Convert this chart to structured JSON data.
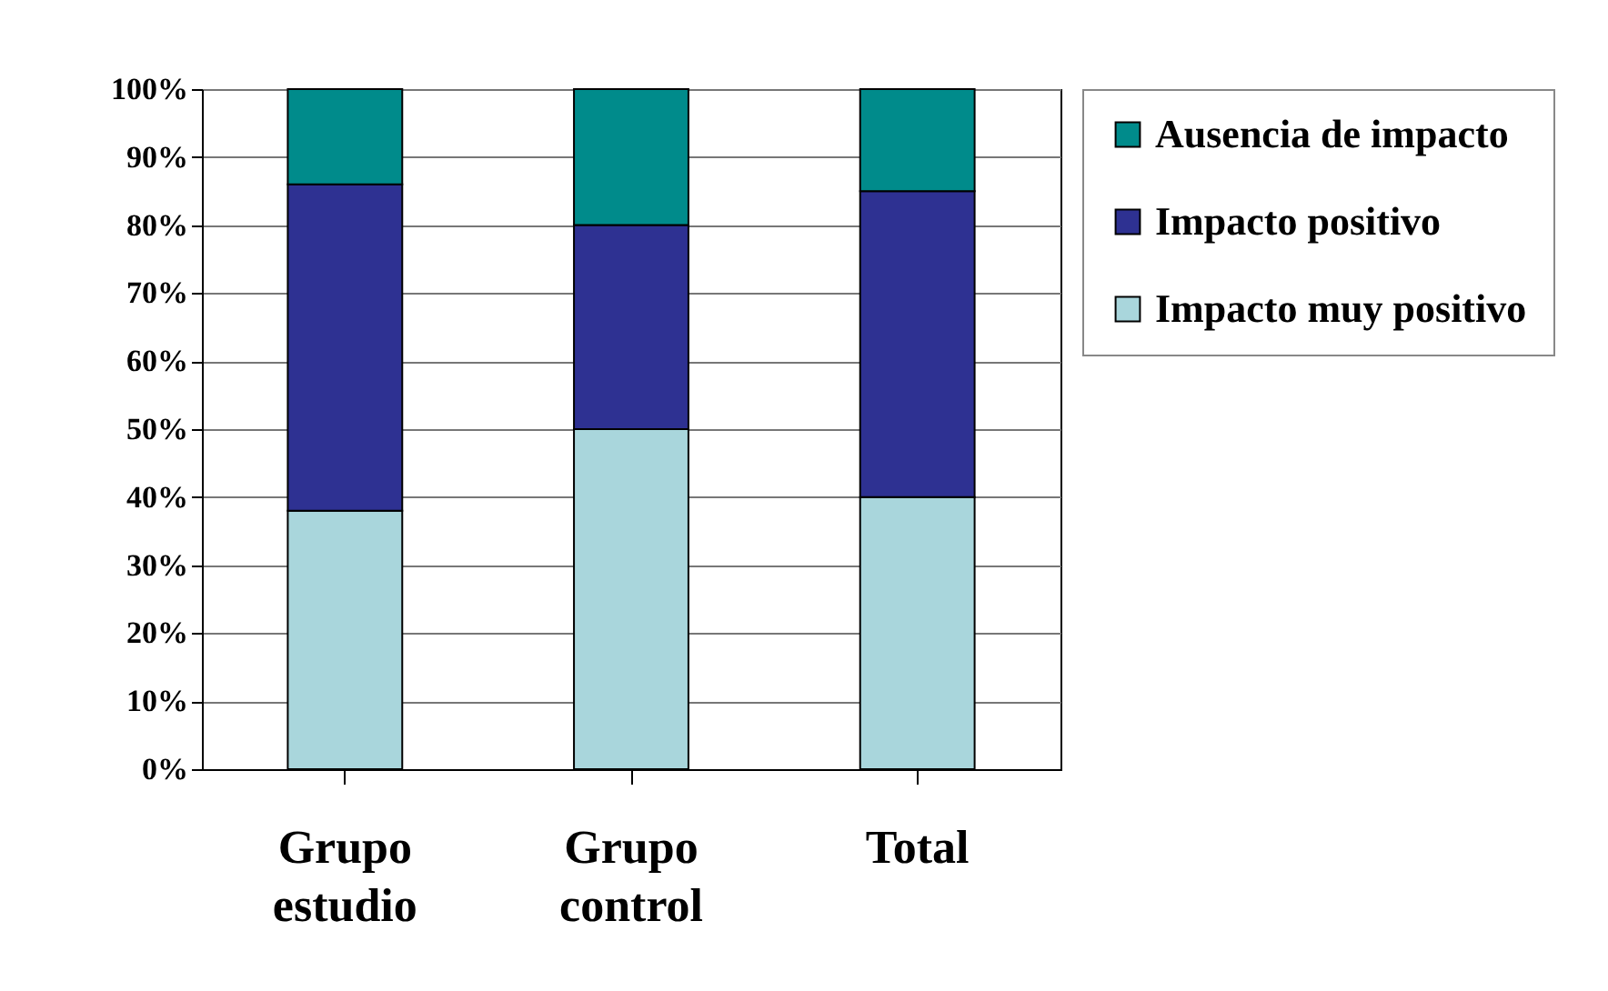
{
  "chart_data": {
    "type": "bar",
    "stacked": true,
    "categories": [
      "Grupo estudio",
      "Grupo control",
      "Total"
    ],
    "series": [
      {
        "name": "Impacto muy positivo",
        "color": "#a9d6dc",
        "values": [
          38,
          50,
          40
        ]
      },
      {
        "name": "Impacto positivo",
        "color": "#2e3192",
        "values": [
          48,
          30,
          45
        ]
      },
      {
        "name": "Ausencia de impacto",
        "color": "#008b8b",
        "values": [
          14,
          20,
          15
        ]
      }
    ],
    "ylim": [
      0,
      100
    ],
    "yticks": [
      {
        "value": 0,
        "label": "0%"
      },
      {
        "value": 10,
        "label": "10%"
      },
      {
        "value": 20,
        "label": "20%"
      },
      {
        "value": 30,
        "label": "30%"
      },
      {
        "value": 40,
        "label": "40%"
      },
      {
        "value": 50,
        "label": "50%"
      },
      {
        "value": 60,
        "label": "60%"
      },
      {
        "value": 70,
        "label": "70%"
      },
      {
        "value": 80,
        "label": "80%"
      },
      {
        "value": 90,
        "label": "90%"
      },
      {
        "value": 100,
        "label": "100%"
      }
    ],
    "grid": "y",
    "legend": "right"
  }
}
